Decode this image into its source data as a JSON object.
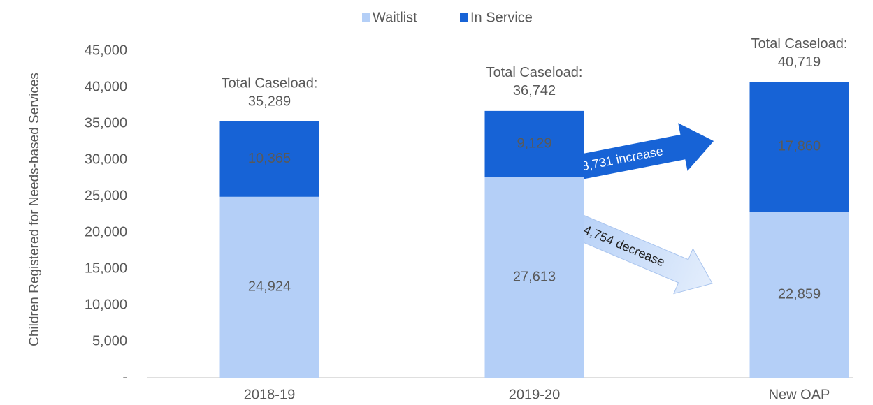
{
  "chart_data": {
    "type": "stacked_bar",
    "y_label": "Children Registered for Needs-based Services",
    "categories": [
      "2018-19",
      "2019-20",
      "New OAP"
    ],
    "series": [
      {
        "name": "Waitlist",
        "color": "#b4cff7",
        "values": [
          24924,
          27613,
          22859
        ],
        "value_labels": [
          "24,924",
          "27,613",
          "22,859"
        ]
      },
      {
        "name": "In Service",
        "color": "#1763d6",
        "values": [
          10365,
          9129,
          17860
        ],
        "value_labels": [
          "10,365",
          "9,129",
          "17,860"
        ]
      }
    ],
    "totals": {
      "label": "Total Caseload:",
      "values": [
        35289,
        36742,
        40719
      ],
      "value_labels": [
        "35,289",
        "36,742",
        "40,719"
      ]
    },
    "annotations": [
      {
        "text": "8,731 increase"
      },
      {
        "text": "4,754 decrease"
      }
    ],
    "ylim": [
      0,
      45000
    ],
    "yticks": [
      {
        "value": 0,
        "label": "-"
      },
      {
        "value": 5000,
        "label": "5,000"
      },
      {
        "value": 10000,
        "label": "10,000"
      },
      {
        "value": 15000,
        "label": "15,000"
      },
      {
        "value": 20000,
        "label": "20,000"
      },
      {
        "value": 25000,
        "label": "25,000"
      },
      {
        "value": 30000,
        "label": "30,000"
      },
      {
        "value": 35000,
        "label": "35,000"
      },
      {
        "value": 40000,
        "label": "40,000"
      },
      {
        "value": 45000,
        "label": "45,000"
      }
    ],
    "legend": "top"
  }
}
